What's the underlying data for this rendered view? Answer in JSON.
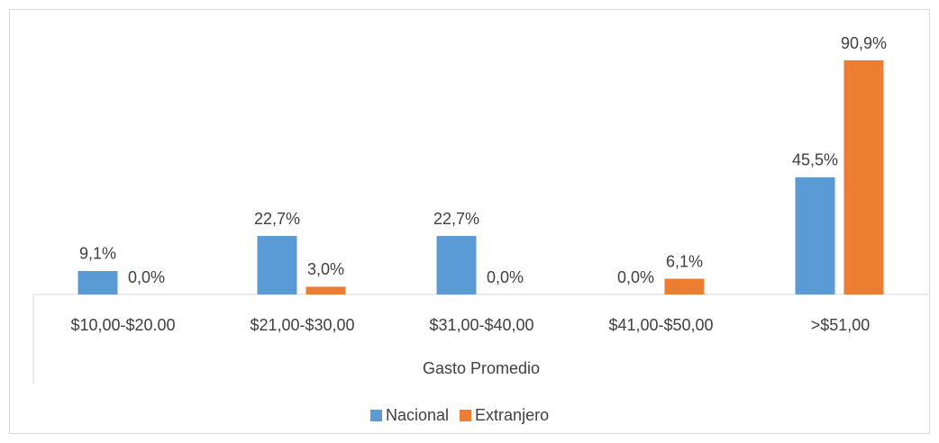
{
  "chart_data": {
    "type": "bar",
    "x_label": "Gasto Promedio",
    "categories": [
      "$10,00-$20.00",
      "$21,00-$30,00",
      "$31,00-$40,00",
      "$41,00-$50,00",
      ">$51,00"
    ],
    "series": [
      {
        "name": "Nacional",
        "color": "#5b9bd5",
        "values": [
          9.1,
          22.7,
          22.7,
          0,
          45.5
        ],
        "value_labels": [
          "9,1%",
          "22,7%",
          "22,7%",
          "0,0%",
          "45,5%"
        ]
      },
      {
        "name": "Extranjero",
        "color": "#ed7d31",
        "values": [
          0,
          3.0,
          0,
          6.1,
          90.9
        ],
        "value_labels": [
          "0,0%",
          "3,0%",
          "0,0%",
          "6,1%",
          "90,9%"
        ]
      }
    ],
    "legend": "bottom"
  }
}
